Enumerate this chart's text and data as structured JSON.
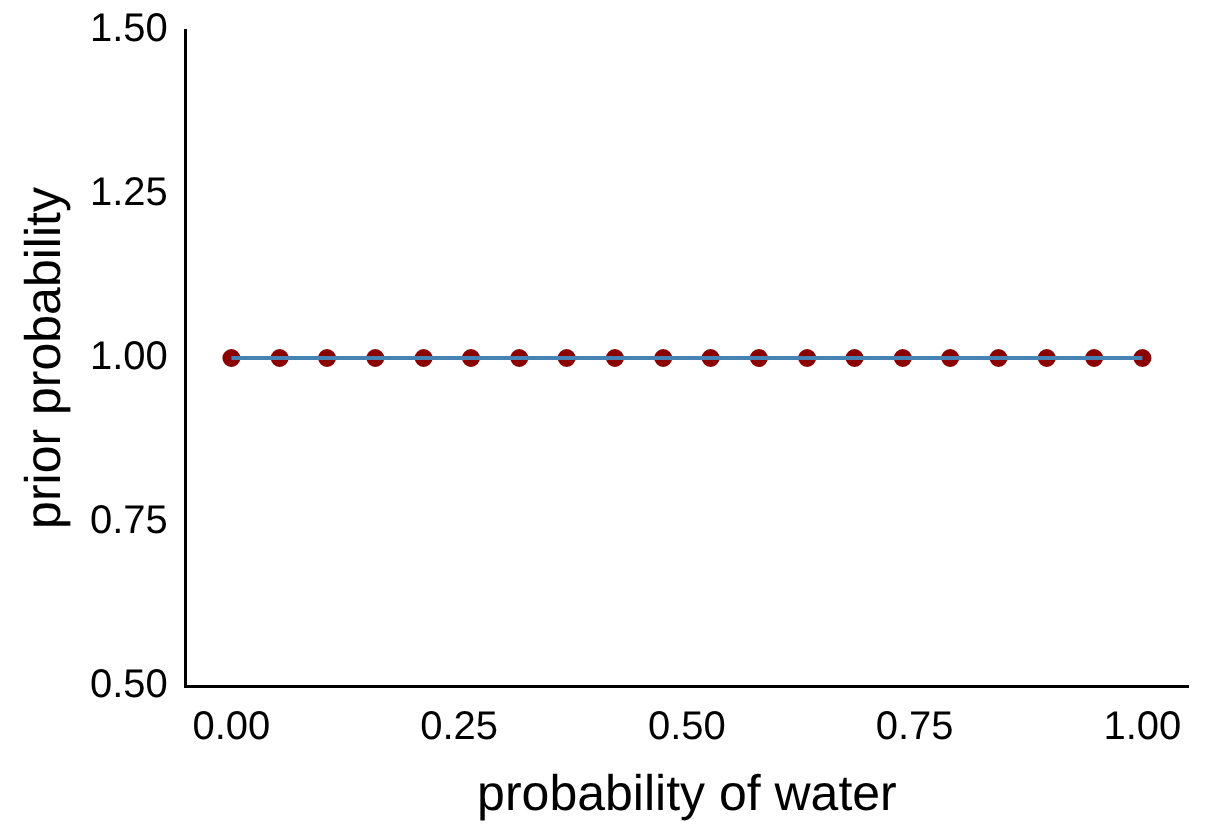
{
  "chart_data": {
    "type": "line",
    "xlabel": "probability of water",
    "ylabel": "prior probability",
    "x": [
      0,
      0.053,
      0.105,
      0.158,
      0.211,
      0.263,
      0.316,
      0.368,
      0.421,
      0.474,
      0.526,
      0.579,
      0.632,
      0.684,
      0.737,
      0.789,
      0.842,
      0.895,
      0.947,
      1
    ],
    "series": [
      {
        "type": "line",
        "color": "#4682b4",
        "marker": "none",
        "values": [
          1,
          1,
          1,
          1,
          1,
          1,
          1,
          1,
          1,
          1,
          1,
          1,
          1,
          1,
          1,
          1,
          1,
          1,
          1,
          1
        ]
      },
      {
        "type": "scatter",
        "color": "#8b0000",
        "marker": "circle",
        "values": [
          1,
          1,
          1,
          1,
          1,
          1,
          1,
          1,
          1,
          1,
          1,
          1,
          1,
          1,
          1,
          1,
          1,
          1,
          1,
          1
        ]
      }
    ],
    "xlim": [
      -0.05,
      1.05
    ],
    "xticks": [
      {
        "value": 0,
        "label": "0.00"
      },
      {
        "value": 0.25,
        "label": "0.25"
      },
      {
        "value": 0.5,
        "label": "0.50"
      },
      {
        "value": 0.75,
        "label": "0.75"
      },
      {
        "value": 1,
        "label": "1.00"
      }
    ],
    "ylim": [
      0.5,
      1.5
    ],
    "yticks": [
      {
        "value": 0.5,
        "label": "0.50"
      },
      {
        "value": 0.75,
        "label": "0.75"
      },
      {
        "value": 1,
        "label": "1.00"
      },
      {
        "value": 1.25,
        "label": "1.25"
      },
      {
        "value": 1.5,
        "label": "1.50"
      }
    ],
    "grid": false,
    "legend": false
  }
}
